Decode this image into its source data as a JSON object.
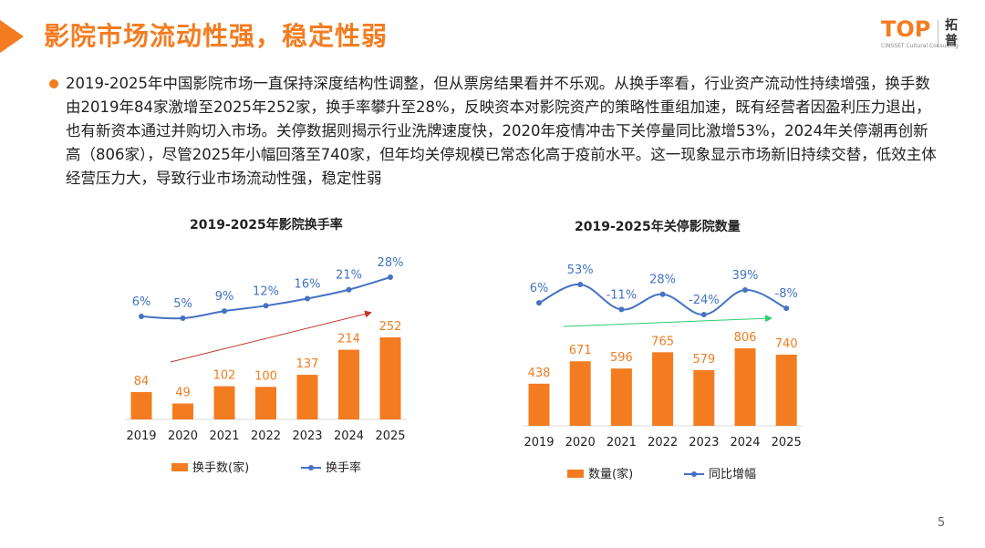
{
  "header": {
    "title": "影院市场流动性强，稳定性弱",
    "logo": {
      "word": "TOP",
      "subtext": "CINSSET Cultural Consulting",
      "chinese": "拓普"
    }
  },
  "body": {
    "paragraph": "2019-2025年中国影院市场一直保持深度结构性调整，但从票房结果看并不乐观。从换手率看，行业资产流动性持续增强，换手数由2019年84家激增至2025年252家，换手率攀升至28%，反映资本对影院资产的策略性重组加速，既有经营者因盈利压力退出，也有新资本通过并购切入市场。关停数据则揭示行业洗牌速度快，2020年疫情冲击下关停量同比激增53%，2024年关停潮再创新高（806家），尽管2025年小幅回落至740家，但年均关停规模已常态化高于疫前水平。这一现象显示市场新旧持续交替，低效主体经营压力大，导致行业市场流动性强，稳定性弱"
  },
  "colors": {
    "accent": "#f47c20",
    "bar": "#f47c20",
    "line": "#4472c4",
    "trend_red": "#c0392b",
    "trend_green": "#2ecc71"
  },
  "page_number": "5",
  "chart_data": [
    {
      "type": "bar+line",
      "title": "2019-2025年影院换手率",
      "categories": [
        "2019",
        "2020",
        "2021",
        "2022",
        "2023",
        "2024",
        "2025"
      ],
      "series": [
        {
          "name": "换手数(家)",
          "kind": "bar",
          "values": [
            84,
            49,
            102,
            100,
            137,
            214,
            252
          ],
          "labels": [
            "84",
            "49",
            "102",
            "100",
            "137",
            "214",
            "252"
          ]
        },
        {
          "name": "换手率",
          "kind": "line",
          "values": [
            6,
            5,
            9,
            12,
            16,
            21,
            28
          ],
          "labels": [
            "6%",
            "5%",
            "9%",
            "12%",
            "16%",
            "21%",
            "28%"
          ]
        }
      ],
      "trend_arrow": "red, rising",
      "legend": "bottom"
    },
    {
      "type": "bar+line",
      "title": "2019-2025年关停影院数量",
      "categories": [
        "2019",
        "2020",
        "2021",
        "2022",
        "2023",
        "2024",
        "2025"
      ],
      "series": [
        {
          "name": "数量(家)",
          "kind": "bar",
          "values": [
            438,
            671,
            596,
            765,
            579,
            806,
            740
          ],
          "labels": [
            "438",
            "671",
            "596",
            "765",
            "579",
            "806",
            "740"
          ]
        },
        {
          "name": "同比增幅",
          "kind": "line",
          "values": [
            6,
            53,
            -11,
            28,
            -24,
            39,
            -8
          ],
          "labels": [
            "6%",
            "53%",
            "-11%",
            "28%",
            "-24%",
            "39%",
            "-8%"
          ]
        }
      ],
      "trend_arrow": "green, rising",
      "legend": "bottom"
    }
  ]
}
